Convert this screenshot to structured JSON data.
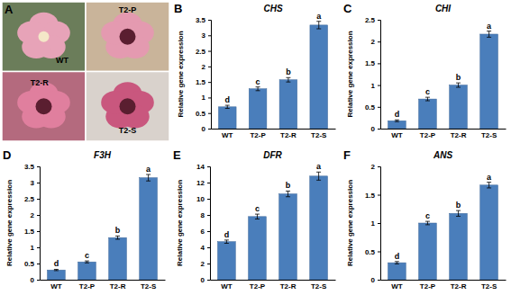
{
  "photo_panel": {
    "label": "A",
    "images": [
      "WT",
      "T2-P",
      "T2-R",
      "T2-S"
    ]
  },
  "chart_data": [
    {
      "type": "bar",
      "panel": "B",
      "title": "CHS",
      "y_label": "Relative gene expression",
      "categories": [
        "WT",
        "T2-P",
        "T2-R",
        "T2-S"
      ],
      "values": [
        0.7,
        1.28,
        1.57,
        3.33
      ],
      "errors": [
        0.05,
        0.06,
        0.07,
        0.12
      ],
      "annotations": [
        "d",
        "c",
        "b",
        "a"
      ],
      "color": "#4a7ebb",
      "ylim": [
        0,
        3.5
      ],
      "yticks": [
        0,
        0.5,
        1,
        1.5,
        2,
        2.5,
        3,
        3.5
      ]
    },
    {
      "type": "bar",
      "panel": "C",
      "title": "CHI",
      "y_label": "Relative gene expression",
      "categories": [
        "WT",
        "T2-P",
        "T2-R",
        "T2-S"
      ],
      "values": [
        0.18,
        0.68,
        1.0,
        2.17
      ],
      "errors": [
        0.02,
        0.04,
        0.05,
        0.07
      ],
      "annotations": [
        "d",
        "c",
        "b",
        "a"
      ],
      "color": "#4a7ebb",
      "ylim": [
        0,
        2.5
      ],
      "yticks": [
        0,
        0.5,
        1,
        1.5,
        2,
        2.5
      ]
    },
    {
      "type": "bar",
      "panel": "D",
      "title": "F3H",
      "y_label": "Relative gene expression",
      "categories": [
        "WT",
        "T2-P",
        "T2-R",
        "T2-S"
      ],
      "values": [
        0.3,
        0.55,
        1.3,
        3.15
      ],
      "errors": [
        0.02,
        0.03,
        0.05,
        0.1
      ],
      "annotations": [
        "d",
        "c",
        "b",
        "a"
      ],
      "color": "#4a7ebb",
      "ylim": [
        0,
        3.5
      ],
      "yticks": [
        0,
        0.5,
        1,
        1.5,
        2,
        2.5,
        3,
        3.5
      ]
    },
    {
      "type": "bar",
      "panel": "E",
      "title": "DFR",
      "y_label": "Relative gene expression",
      "categories": [
        "WT",
        "T2-P",
        "T2-R",
        "T2-S"
      ],
      "values": [
        4.7,
        7.8,
        10.6,
        12.8
      ],
      "errors": [
        0.2,
        0.3,
        0.35,
        0.5
      ],
      "annotations": [
        "d",
        "c",
        "b",
        "a"
      ],
      "color": "#4a7ebb",
      "ylim": [
        0,
        14
      ],
      "yticks": [
        0,
        2,
        4,
        6,
        8,
        10,
        12,
        14
      ]
    },
    {
      "type": "bar",
      "panel": "F",
      "title": "ANS",
      "y_label": "Relative gene expression",
      "categories": [
        "WT",
        "T2-P",
        "T2-R",
        "T2-S"
      ],
      "values": [
        0.3,
        1.0,
        1.17,
        1.67
      ],
      "errors": [
        0.02,
        0.03,
        0.05,
        0.05
      ],
      "annotations": [
        "d",
        "c",
        "b",
        "a"
      ],
      "color": "#4a7ebb",
      "ylim": [
        0,
        2
      ],
      "yticks": [
        0,
        0.5,
        1,
        1.5,
        2
      ]
    }
  ]
}
